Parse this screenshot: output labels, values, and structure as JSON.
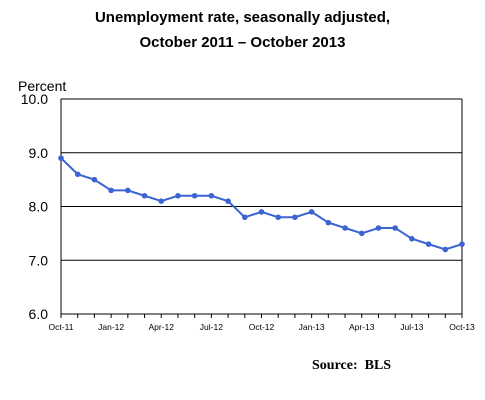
{
  "chart_data": {
    "type": "line",
    "title": "Unemployment rate, seasonally adjusted,",
    "subtitle": "October 2011 – October 2013",
    "ylabel": "Percent",
    "xlabel": "",
    "source": "Source:  BLS",
    "ylim": [
      6.0,
      10.0
    ],
    "yticks": [
      "6.0",
      "7.0",
      "8.0",
      "9.0",
      "10.0"
    ],
    "xtick_labels": [
      {
        "index": 0,
        "label": "Oct-11"
      },
      {
        "index": 3,
        "label": "Jan-12"
      },
      {
        "index": 6,
        "label": "Apr-12"
      },
      {
        "index": 9,
        "label": "Jul-12"
      },
      {
        "index": 12,
        "label": "Oct-12"
      },
      {
        "index": 15,
        "label": "Jan-13"
      },
      {
        "index": 18,
        "label": "Apr-13"
      },
      {
        "index": 21,
        "label": "Jul-13"
      },
      {
        "index": 24,
        "label": "Oct-13"
      }
    ],
    "x": [
      "Oct-11",
      "Nov-11",
      "Dec-11",
      "Jan-12",
      "Feb-12",
      "Mar-12",
      "Apr-12",
      "May-12",
      "Jun-12",
      "Jul-12",
      "Aug-12",
      "Sep-12",
      "Oct-12",
      "Nov-12",
      "Dec-12",
      "Jan-13",
      "Feb-13",
      "Mar-13",
      "Apr-13",
      "May-13",
      "Jun-13",
      "Jul-13",
      "Aug-13",
      "Sep-13",
      "Oct-13"
    ],
    "series": [
      {
        "values": [
          8.9,
          8.6,
          8.5,
          8.3,
          8.3,
          8.2,
          8.1,
          8.2,
          8.2,
          8.2,
          8.1,
          7.8,
          7.9,
          7.8,
          7.8,
          7.9,
          7.7,
          7.6,
          7.5,
          7.6,
          7.6,
          7.4,
          7.3,
          7.2,
          7.3
        ],
        "color": "#3c64d2"
      }
    ],
    "grid": "horizontal"
  }
}
